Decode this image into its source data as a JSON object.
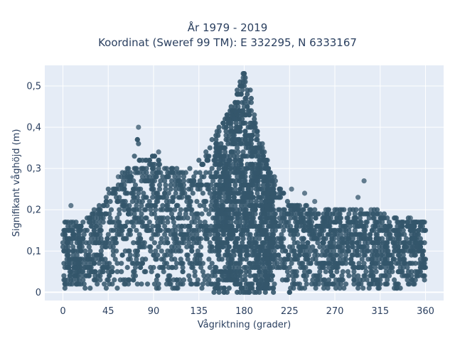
{
  "chart_data": {
    "type": "scatter",
    "title": "År 1979 - 2019",
    "subtitle": "Koordinat (Sweref 99 TM): E 332295, N 6333167",
    "xlabel": "Vågriktning (grader)",
    "ylabel": "Signifikant våghöjd (m)",
    "xlim": [
      -18,
      378
    ],
    "ylim": [
      -0.02,
      0.55
    ],
    "x_ticks": [
      0,
      45,
      90,
      135,
      180,
      225,
      270,
      315,
      360
    ],
    "x_tick_labels": [
      "0",
      "45",
      "90",
      "135",
      "180",
      "225",
      "270",
      "315",
      "360"
    ],
    "y_ticks": [
      0,
      0.1,
      0.2,
      0.3,
      0.4,
      0.5
    ],
    "y_tick_labels": [
      "0",
      "0,1",
      "0,2",
      "0,3",
      "0,4",
      "0,5"
    ],
    "grid": true,
    "legend": "none",
    "marker_color": "#34566b",
    "plot_background": "#e5ecf6",
    "envelope": {
      "x": [
        0,
        10,
        20,
        30,
        40,
        45,
        50,
        60,
        70,
        75,
        80,
        90,
        100,
        110,
        120,
        130,
        135,
        140,
        145,
        150,
        155,
        160,
        165,
        170,
        175,
        178,
        180,
        182,
        185,
        190,
        195,
        200,
        205,
        210,
        215,
        220,
        225,
        230,
        240,
        245,
        250,
        260,
        270,
        280,
        290,
        300,
        310,
        320,
        330,
        340,
        350,
        360
      ],
      "y_max": [
        0.17,
        0.17,
        0.17,
        0.2,
        0.22,
        0.25,
        0.26,
        0.3,
        0.32,
        0.4,
        0.32,
        0.34,
        0.3,
        0.3,
        0.3,
        0.3,
        0.33,
        0.35,
        0.37,
        0.38,
        0.4,
        0.42,
        0.44,
        0.47,
        0.5,
        0.52,
        0.53,
        0.52,
        0.5,
        0.44,
        0.38,
        0.34,
        0.3,
        0.28,
        0.26,
        0.24,
        0.22,
        0.22,
        0.21,
        0.21,
        0.2,
        0.2,
        0.2,
        0.2,
        0.2,
        0.2,
        0.2,
        0.19,
        0.18,
        0.18,
        0.18,
        0.17
      ],
      "y_min": [
        0.01,
        0.01,
        0.01,
        0.01,
        0.01,
        0.01,
        0.01,
        0.01,
        0.01,
        0.01,
        0.01,
        0.01,
        0.01,
        0.01,
        0.01,
        0.01,
        0.01,
        0.01,
        0.01,
        0.01,
        0.0,
        0.01,
        0.01,
        0.01,
        0.01,
        0.01,
        0.01,
        0.01,
        0.01,
        0.01,
        0.01,
        0.01,
        0.01,
        0.01,
        0.01,
        0.01,
        0.0,
        0.01,
        0.01,
        0.01,
        0.01,
        0.01,
        0.01,
        0.01,
        0.01,
        0.01,
        0.01,
        0.01,
        0.01,
        0.01,
        0.02,
        0.02
      ]
    },
    "outliers": [
      {
        "x": 75,
        "y": 0.4
      },
      {
        "x": 165,
        "y": 0.43
      },
      {
        "x": 180,
        "y": 0.53
      },
      {
        "x": 227,
        "y": 0.25
      },
      {
        "x": 240,
        "y": 0.24
      },
      {
        "x": 293,
        "y": 0.23
      },
      {
        "x": 299,
        "y": 0.27
      },
      {
        "x": 306,
        "y": 0.2
      },
      {
        "x": 345,
        "y": 0.18
      },
      {
        "x": 160,
        "y": 0.0
      },
      {
        "x": 225,
        "y": 0.0
      },
      {
        "x": 8,
        "y": 0.21
      },
      {
        "x": 55,
        "y": 0.28
      },
      {
        "x": 95,
        "y": 0.34
      },
      {
        "x": 250,
        "y": 0.22
      }
    ]
  }
}
